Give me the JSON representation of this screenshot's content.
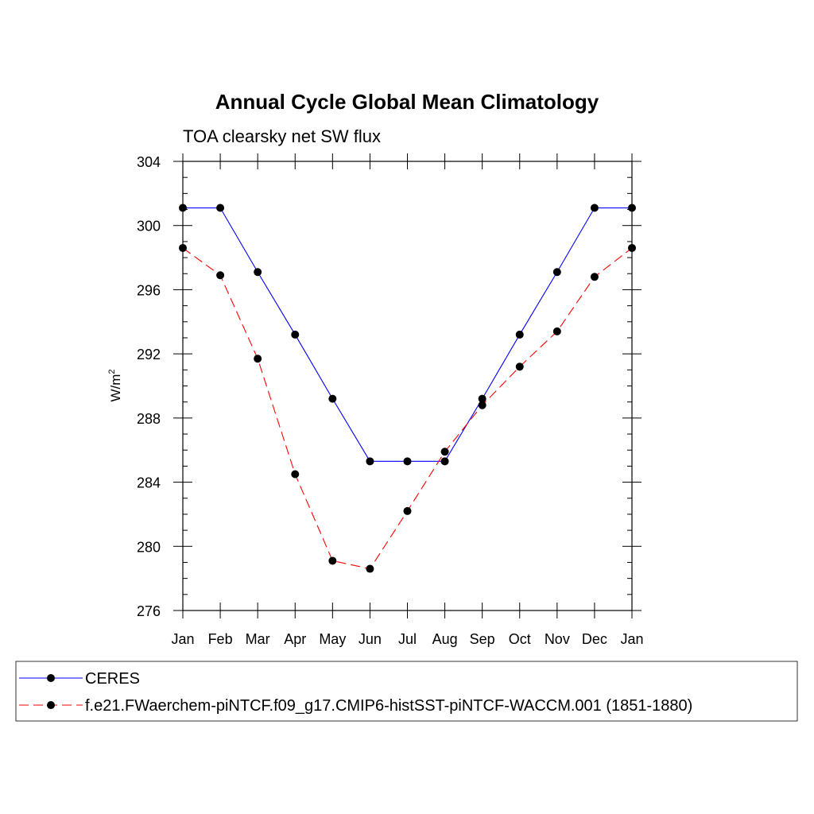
{
  "chart_data": {
    "type": "line",
    "title": "Annual Cycle Global Mean Climatology",
    "subtitle": "TOA clearsky net SW flux",
    "xlabel": "",
    "ylabel": "W/m",
    "ylabel_superscript": "2",
    "categories": [
      "Jan",
      "Feb",
      "Mar",
      "Apr",
      "May",
      "Jun",
      "Jul",
      "Aug",
      "Sep",
      "Oct",
      "Nov",
      "Dec",
      "Jan"
    ],
    "yticks": [
      "276",
      "280",
      "284",
      "288",
      "292",
      "296",
      "300",
      "304"
    ],
    "ylim": [
      276,
      304
    ],
    "grid": false,
    "legend_position": "bottom",
    "series": [
      {
        "name": "CERES",
        "color": "#0000ff",
        "line_style": "solid",
        "marker": "filled-circle",
        "values": [
          301.1,
          301.1,
          297.1,
          293.2,
          289.2,
          285.3,
          285.3,
          285.3,
          289.2,
          293.2,
          297.1,
          301.1,
          301.1
        ]
      },
      {
        "name": "f.e21.FWaerchem-piNTCF.f09_g17.CMIP6-histSST-piNTCF-WACCM.001 (1851-1880)",
        "color": "#ff0000",
        "line_style": "dashed",
        "marker": "filled-circle",
        "values": [
          298.6,
          296.9,
          291.7,
          284.5,
          279.1,
          278.6,
          282.2,
          285.9,
          288.8,
          291.2,
          293.4,
          296.8,
          298.6
        ]
      }
    ]
  }
}
